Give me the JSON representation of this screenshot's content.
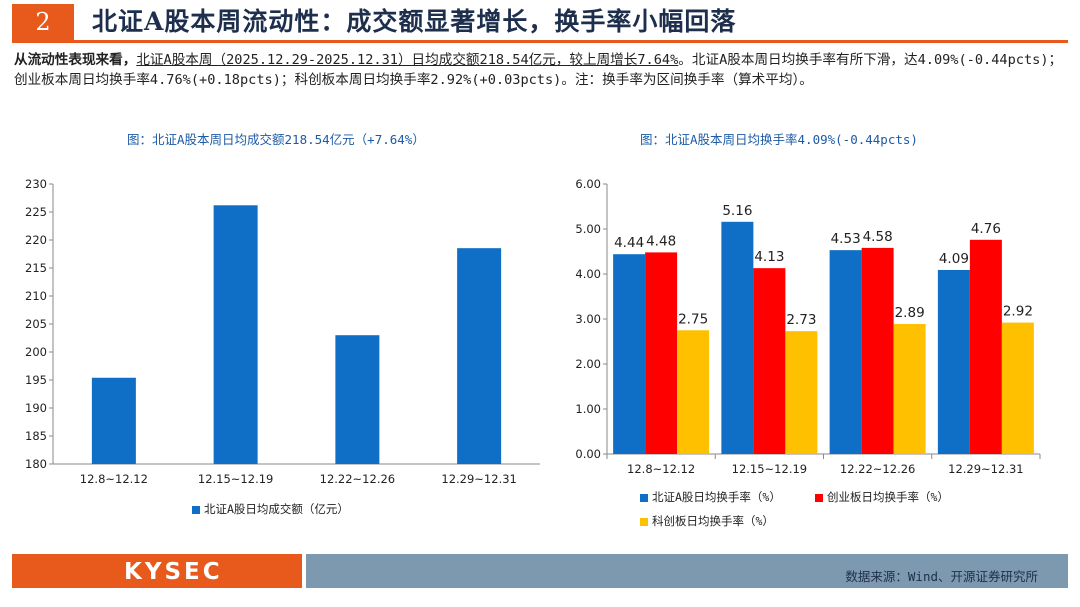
{
  "header": {
    "number": "2",
    "title": "北证A股本周流动性：成交额显著增长，换手率小幅回落"
  },
  "summary": {
    "lead": "从流动性表现来看，",
    "highlight": "北证A股本周（2025.12.29-2025.12.31）日均成交额218.54亿元，较上周增长7.64%",
    "rest": "。北证A股本周日均换手率有所下滑，达4.09%(-0.44pcts)；创业板本周日均换手率4.76%(+0.18pcts)；科创板本周日均换手率2.92%(+0.03pcts)。注：换手率为区间换手率（算术平均）。"
  },
  "colors": {
    "accent": "#e85a1c",
    "footer_blue": "#7d99b0",
    "blue": "#0f6fc6",
    "red": "#ff0000",
    "yellow": "#ffc000"
  },
  "chart_data": [
    {
      "type": "bar",
      "title": "图：北证A股本周日均成交额218.54亿元（+7.64%）",
      "categories": [
        "12.8~12.12",
        "12.15~12.19",
        "12.22~12.26",
        "12.29~12.31"
      ],
      "series": [
        {
          "name": "北证A股日均成交额（亿元）",
          "color": "#0f6fc6",
          "values": [
            195.4,
            226.2,
            203.0,
            218.54
          ]
        }
      ],
      "ylim": [
        180,
        230
      ],
      "yticks": [
        "180",
        "185",
        "190",
        "195",
        "200",
        "205",
        "210",
        "215",
        "220",
        "225",
        "230"
      ],
      "grid": false,
      "legend": "bottom"
    },
    {
      "type": "bar",
      "title": "图：北证A股本周日均换手率4.09%(-0.44pcts)",
      "categories": [
        "12.8~12.12",
        "12.15~12.19",
        "12.22~12.26",
        "12.29~12.31"
      ],
      "series": [
        {
          "name": "北证A股日均换手率（%）",
          "color": "#0f6fc6",
          "values": [
            4.44,
            5.16,
            4.53,
            4.09
          ],
          "labels": [
            "4.44",
            "5.16",
            "4.53",
            "4.09"
          ]
        },
        {
          "name": "创业板日均换手率（%）",
          "color": "#ff0000",
          "values": [
            4.48,
            4.13,
            4.58,
            4.76
          ],
          "labels": [
            "4.48",
            "4.13",
            "4.58",
            "4.76"
          ]
        },
        {
          "name": "科创板日均换手率（%）",
          "color": "#ffc000",
          "values": [
            2.75,
            2.73,
            2.89,
            2.92
          ],
          "labels": [
            "2.75",
            "2.73",
            "2.89",
            "2.92"
          ]
        }
      ],
      "ylim": [
        0,
        6
      ],
      "yticks": [
        "0.00",
        "1.00",
        "2.00",
        "3.00",
        "4.00",
        "5.00",
        "6.00"
      ],
      "grid": false,
      "legend": "bottom"
    }
  ],
  "footer": {
    "logo": "KYSEC",
    "source": "数据来源：Wind、开源证券研究所"
  }
}
